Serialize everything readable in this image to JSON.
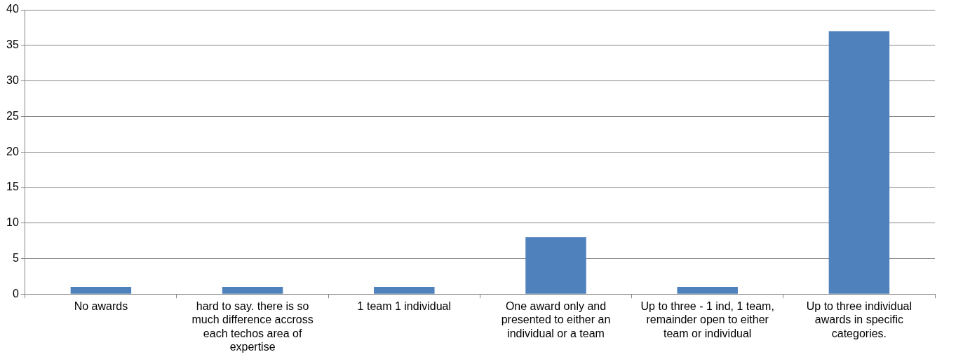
{
  "chart_data": {
    "type": "bar",
    "categories": [
      "No awards",
      "hard to say. there is so much difference accross each techos area of expertise",
      "1 team 1 individual",
      "One award only and presented to either an individual or a team",
      "Up to three - 1 ind, 1 team, remainder open to either team or individual",
      "Up to three individual awards in specific categories."
    ],
    "values": [
      1,
      1,
      1,
      8,
      1,
      37
    ],
    "color": "#4f81bd",
    "ylim": [
      0,
      40
    ],
    "yticks": [
      0,
      5,
      10,
      15,
      20,
      25,
      30,
      35,
      40
    ],
    "grid": "y",
    "legend": false
  }
}
